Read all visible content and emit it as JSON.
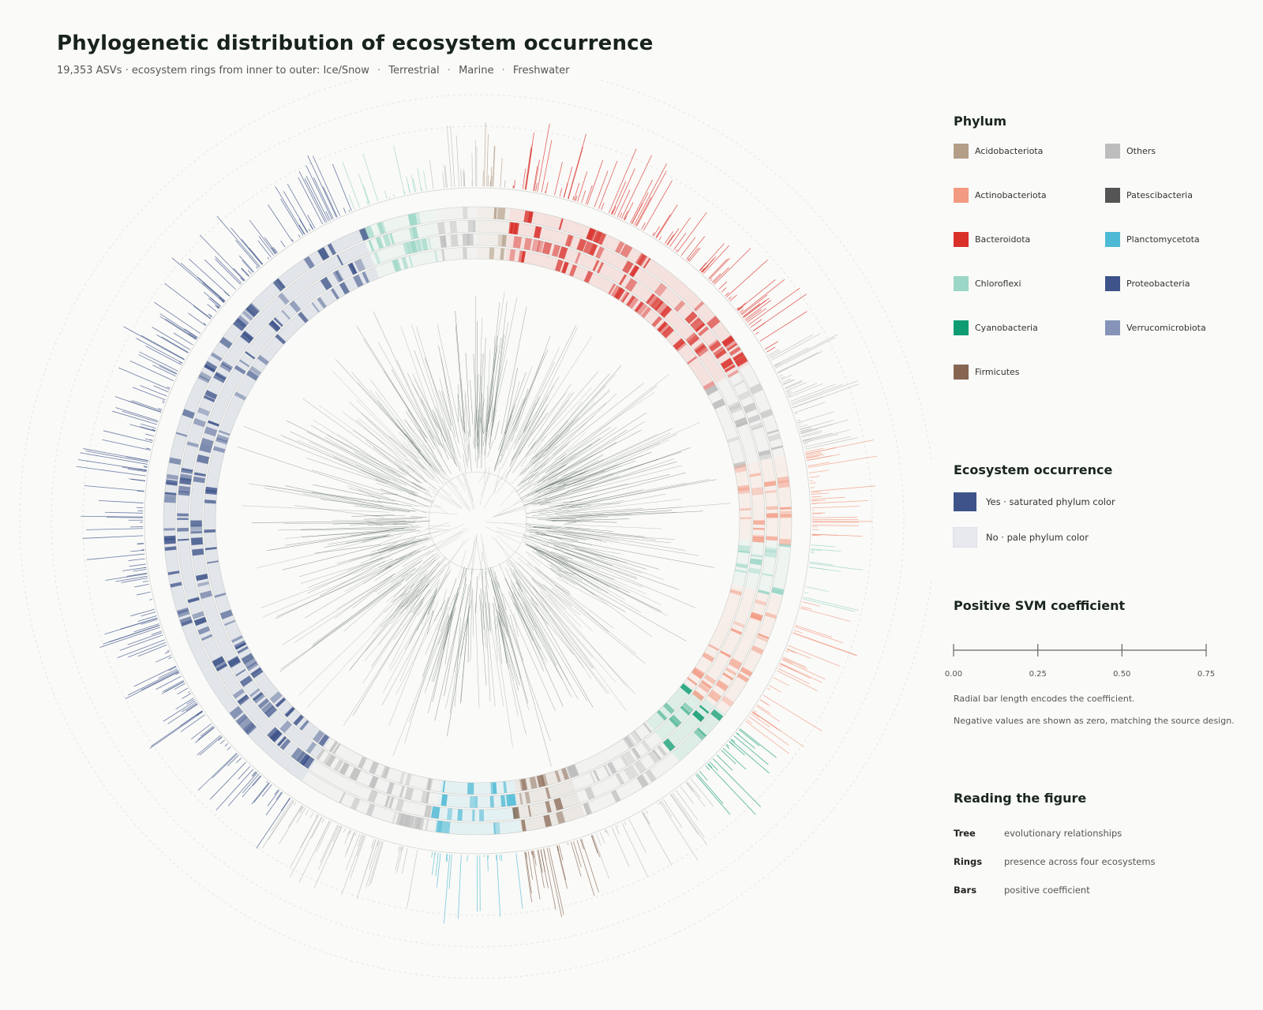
{
  "header": {
    "title": "Phylogenetic distribution of ecosystem occurrence",
    "subtitle_prefix": "19,353 ASVs · ecosystem rings from inner to outer: Ice/Snow",
    "subtitle_items": [
      "Terrestrial",
      "Marine",
      "Freshwater"
    ]
  },
  "legend": {
    "phylum_title": "Phylum",
    "phyla": [
      {
        "name": "Acidobacteriota",
        "color": "#b49e88"
      },
      {
        "name": "Actinobacteriota",
        "color": "#f29a82"
      },
      {
        "name": "Bacteroidota",
        "color": "#d9302a"
      },
      {
        "name": "Chloroflexi",
        "color": "#9bd6c6"
      },
      {
        "name": "Cyanobacteria",
        "color": "#109c72"
      },
      {
        "name": "Firmicutes",
        "color": "#866650"
      },
      {
        "name": "Others",
        "color": "#bdbdbd"
      },
      {
        "name": "Patescibacteria",
        "color": "#555555"
      },
      {
        "name": "Planctomycetota",
        "color": "#4db9d4"
      },
      {
        "name": "Proteobacteria",
        "color": "#3d5389"
      },
      {
        "name": "Verrucomicrobiota",
        "color": "#8594b8"
      }
    ],
    "eco_title": "Ecosystem occurrence",
    "eco_yes": {
      "label": "Yes · saturated phylum color",
      "color": "#3d5389"
    },
    "eco_no": {
      "label": "No · pale phylum color",
      "color": "#e8e9ef"
    },
    "svm_title": "Positive SVM coefficient",
    "svm_ticks": [
      "0.00",
      "0.25",
      "0.50",
      "0.75"
    ],
    "svm_note_1": "Radial bar length encodes the coefficient.",
    "svm_note_2": "Negative values are shown as zero, matching the source design.",
    "reading_title": "Reading the figure",
    "reading": [
      {
        "key": "Tree",
        "desc": "evolutionary relationships"
      },
      {
        "key": "Rings",
        "desc": "presence across four ecosystems"
      },
      {
        "key": "Bars",
        "desc": "positive coefficient"
      }
    ]
  }
}
